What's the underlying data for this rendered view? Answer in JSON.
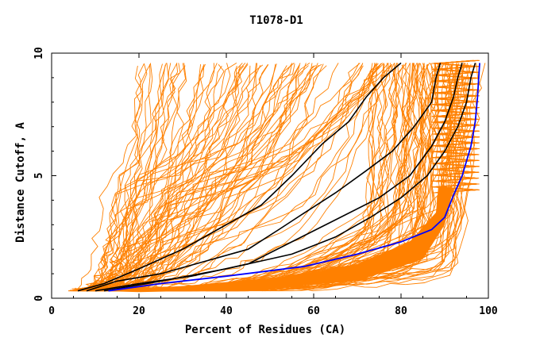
{
  "chart_data": {
    "type": "line",
    "title": "T1078-D1",
    "xlabel": "Percent of Residues (CA)",
    "ylabel": "Distance Cutoff, A",
    "xlim": [
      0,
      100
    ],
    "ylim": [
      0,
      10
    ],
    "x_ticks": [
      "0",
      "20",
      "40",
      "60",
      "80",
      "100"
    ],
    "y_ticks": [
      "0",
      "5",
      "10"
    ],
    "grid": false,
    "colors": {
      "models": "#ff8000",
      "highlight_black": "#000000",
      "highlight_blue": "#0000ff",
      "frame": "#000000"
    },
    "black_series": [
      {
        "x": [
          6,
          12,
          20,
          30,
          40,
          48,
          55,
          62,
          68,
          72,
          76,
          80
        ],
        "y": [
          0.3,
          0.6,
          1.2,
          2.0,
          3.0,
          3.8,
          5.0,
          6.3,
          7.2,
          8.2,
          9.0,
          9.6
        ]
      },
      {
        "x": [
          8,
          15,
          25,
          35,
          45,
          52,
          58,
          65,
          72,
          78,
          83,
          87,
          88,
          89
        ],
        "y": [
          0.3,
          0.7,
          1.0,
          1.5,
          2.0,
          2.8,
          3.5,
          4.3,
          5.2,
          6.0,
          7.0,
          8.0,
          9.0,
          9.6
        ]
      },
      {
        "x": [
          10,
          20,
          32,
          45,
          55,
          65,
          75,
          82,
          87,
          90,
          92,
          93,
          94
        ],
        "y": [
          0.3,
          0.6,
          0.9,
          1.4,
          2.3,
          3.2,
          4.1,
          5.0,
          6.2,
          7.2,
          8.2,
          9.0,
          9.6
        ]
      },
      {
        "x": [
          12,
          25,
          40,
          55,
          65,
          73,
          80,
          86,
          90,
          93,
          95,
          96,
          97
        ],
        "y": [
          0.3,
          0.7,
          1.2,
          1.8,
          2.5,
          3.3,
          4.1,
          5.0,
          6.0,
          7.0,
          8.0,
          9.0,
          9.6
        ]
      }
    ],
    "blue_series": {
      "x": [
        13,
        25,
        40,
        58,
        70,
        80,
        87,
        90,
        92,
        94,
        96,
        97,
        97.5,
        98
      ],
      "y": [
        0.3,
        0.6,
        0.9,
        1.3,
        1.8,
        2.3,
        2.8,
        3.3,
        4.2,
        5.0,
        6.2,
        7.2,
        8.2,
        9.6
      ]
    },
    "model_lines": 160
  }
}
